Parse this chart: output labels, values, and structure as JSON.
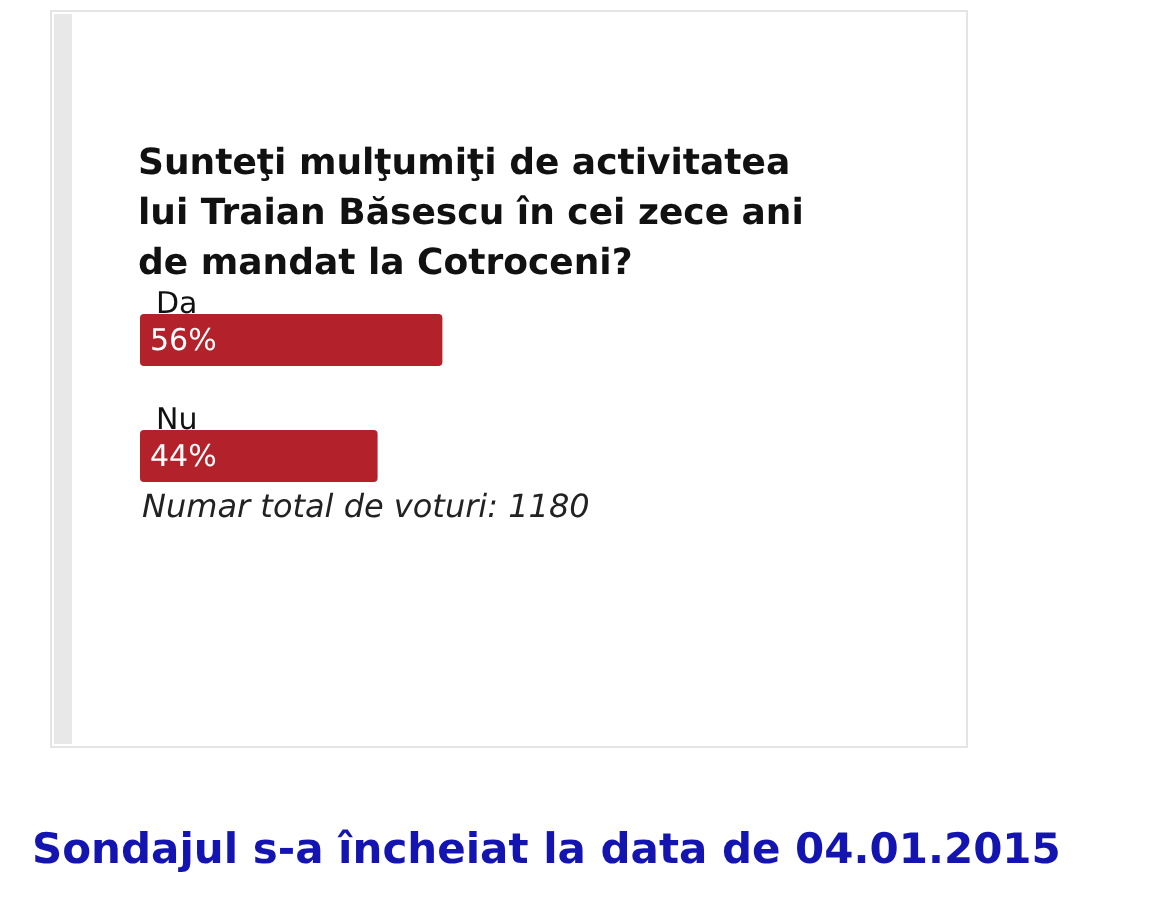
{
  "chart_data": {
    "type": "bar",
    "orientation": "horizontal",
    "title": "Sunteţi mulţumiţi de activitatea lui Traian Băsescu în cei zece ani de mandat la Cotroceni?",
    "categories": [
      "Da",
      "Nu"
    ],
    "values": [
      56,
      44
    ],
    "value_labels": [
      "56%",
      "44%"
    ],
    "color": "#b3222a",
    "annotations": [
      "Numar total de voturi: 1180",
      "Sondajul s-a încheiat la data de 04.01.2015"
    ]
  }
}
